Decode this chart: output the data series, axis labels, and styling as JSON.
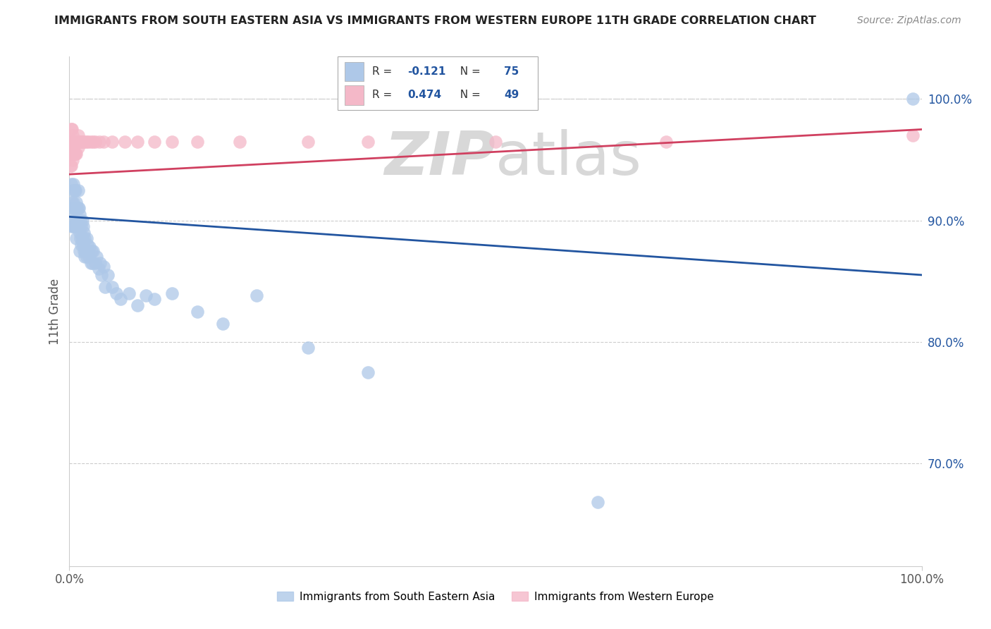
{
  "title": "IMMIGRANTS FROM SOUTH EASTERN ASIA VS IMMIGRANTS FROM WESTERN EUROPE 11TH GRADE CORRELATION CHART",
  "source": "Source: ZipAtlas.com",
  "ylabel": "11th Grade",
  "ylabel_right_ticks": [
    "100.0%",
    "90.0%",
    "80.0%",
    "70.0%"
  ],
  "ylabel_right_values": [
    1.0,
    0.9,
    0.8,
    0.7
  ],
  "legend_label1": "Immigrants from South Eastern Asia",
  "legend_label2": "Immigrants from Western Europe",
  "R_blue": -0.121,
  "N_blue": 75,
  "R_pink": 0.474,
  "N_pink": 49,
  "blue_color": "#aec8e8",
  "pink_color": "#f4b8c8",
  "trendline_blue": "#2255a0",
  "trendline_pink": "#d04060",
  "background_color": "#ffffff",
  "watermark_zip": "ZIP",
  "watermark_atlas": "atlas",
  "xlim": [
    0.0,
    1.0
  ],
  "ylim": [
    0.615,
    1.035
  ],
  "blue_x": [
    0.002,
    0.003,
    0.003,
    0.004,
    0.004,
    0.004,
    0.005,
    0.005,
    0.005,
    0.005,
    0.006,
    0.006,
    0.006,
    0.007,
    0.007,
    0.007,
    0.008,
    0.008,
    0.008,
    0.009,
    0.009,
    0.01,
    0.01,
    0.01,
    0.011,
    0.011,
    0.012,
    0.012,
    0.012,
    0.013,
    0.013,
    0.014,
    0.014,
    0.015,
    0.015,
    0.016,
    0.016,
    0.017,
    0.017,
    0.018,
    0.018,
    0.019,
    0.02,
    0.02,
    0.021,
    0.022,
    0.023,
    0.024,
    0.025,
    0.026,
    0.027,
    0.028,
    0.03,
    0.032,
    0.034,
    0.036,
    0.038,
    0.04,
    0.042,
    0.045,
    0.05,
    0.055,
    0.06,
    0.07,
    0.08,
    0.09,
    0.1,
    0.12,
    0.15,
    0.18,
    0.22,
    0.28,
    0.35,
    0.62,
    0.99
  ],
  "blue_y": [
    0.93,
    0.915,
    0.895,
    0.925,
    0.91,
    0.9,
    0.93,
    0.915,
    0.905,
    0.895,
    0.925,
    0.91,
    0.895,
    0.925,
    0.91,
    0.895,
    0.915,
    0.9,
    0.885,
    0.91,
    0.895,
    0.925,
    0.91,
    0.895,
    0.91,
    0.895,
    0.905,
    0.89,
    0.875,
    0.9,
    0.885,
    0.895,
    0.88,
    0.9,
    0.885,
    0.895,
    0.88,
    0.89,
    0.875,
    0.885,
    0.87,
    0.875,
    0.885,
    0.87,
    0.88,
    0.875,
    0.87,
    0.878,
    0.865,
    0.875,
    0.865,
    0.875,
    0.865,
    0.87,
    0.86,
    0.865,
    0.855,
    0.862,
    0.845,
    0.855,
    0.845,
    0.84,
    0.835,
    0.84,
    0.83,
    0.838,
    0.835,
    0.84,
    0.825,
    0.815,
    0.838,
    0.795,
    0.775,
    0.668,
    1.0
  ],
  "pink_x": [
    0.001,
    0.001,
    0.001,
    0.002,
    0.002,
    0.002,
    0.002,
    0.003,
    0.003,
    0.003,
    0.004,
    0.004,
    0.004,
    0.005,
    0.005,
    0.006,
    0.006,
    0.007,
    0.007,
    0.008,
    0.008,
    0.009,
    0.01,
    0.01,
    0.011,
    0.012,
    0.013,
    0.015,
    0.016,
    0.018,
    0.02,
    0.022,
    0.025,
    0.028,
    0.03,
    0.035,
    0.04,
    0.05,
    0.065,
    0.08,
    0.1,
    0.12,
    0.15,
    0.2,
    0.28,
    0.35,
    0.5,
    0.7,
    0.99
  ],
  "pink_y": [
    0.965,
    0.955,
    0.945,
    0.975,
    0.965,
    0.955,
    0.945,
    0.975,
    0.965,
    0.955,
    0.97,
    0.96,
    0.95,
    0.965,
    0.955,
    0.965,
    0.955,
    0.965,
    0.955,
    0.965,
    0.955,
    0.965,
    0.97,
    0.96,
    0.965,
    0.965,
    0.965,
    0.965,
    0.965,
    0.965,
    0.965,
    0.965,
    0.965,
    0.965,
    0.965,
    0.965,
    0.965,
    0.965,
    0.965,
    0.965,
    0.965,
    0.965,
    0.965,
    0.965,
    0.965,
    0.965,
    0.965,
    0.965,
    0.97
  ],
  "blue_trendline_x": [
    0.0,
    1.0
  ],
  "blue_trendline_y": [
    0.903,
    0.855
  ],
  "pink_trendline_x": [
    0.0,
    1.0
  ],
  "pink_trendline_y": [
    0.938,
    0.975
  ],
  "grid_color": "#cccccc",
  "spine_color": "#cccccc"
}
